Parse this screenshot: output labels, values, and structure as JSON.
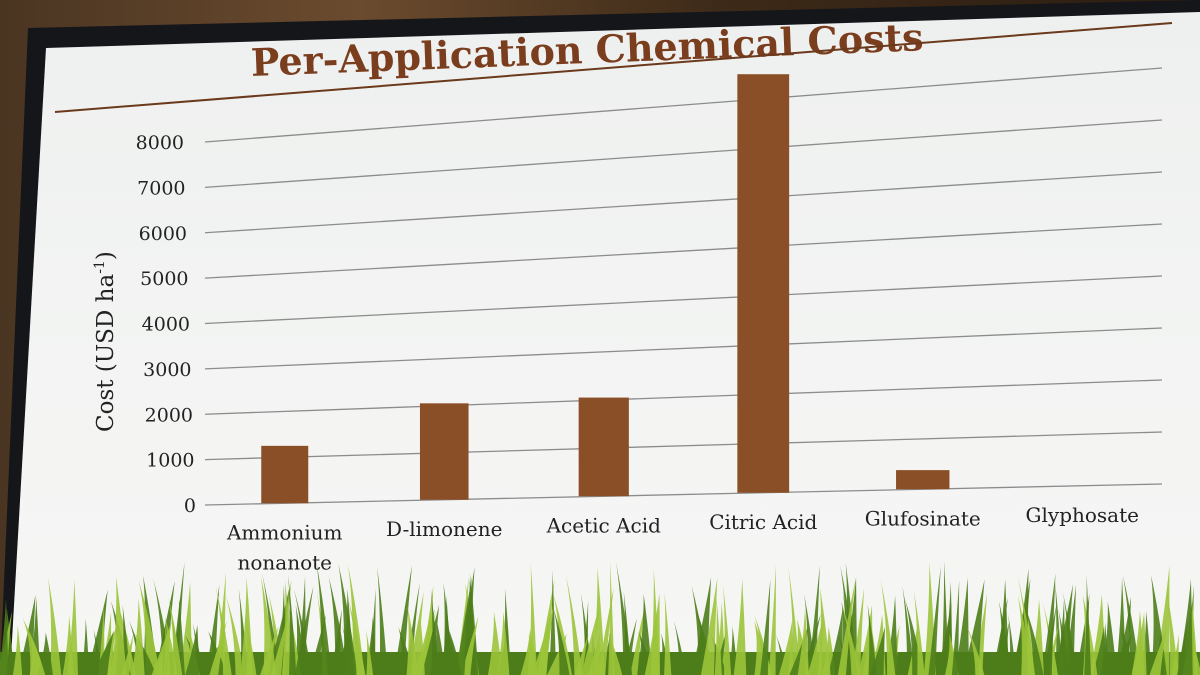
{
  "slide": {
    "title": "Per-Application Chemical Costs"
  },
  "colors": {
    "bar": "#8a4f26",
    "title": "#7a3d1d",
    "gridline": "#8c8c8c",
    "grass_dark": "#4d7d1a",
    "grass_light": "#9cc43a"
  },
  "chart_data": {
    "type": "bar",
    "title": "Per-Application Chemical Costs",
    "xlabel": "",
    "ylabel": "Cost (USD ha-1)",
    "ylabel_main": "Cost (USD ha",
    "ylabel_sup": "-1",
    "ylabel_close": ")",
    "categories": [
      "Ammonium nonanote",
      "D-limonene",
      "Acetic Acid",
      "Citric Acid",
      "Glufosinate",
      "Glyphosate"
    ],
    "category_lines": [
      [
        "Ammonium",
        "nonanote"
      ],
      [
        "D-limonene"
      ],
      [
        "Acetic Acid"
      ],
      [
        "Citric Acid"
      ],
      [
        "Glufosinate"
      ],
      [
        "Glyphosate"
      ]
    ],
    "values": [
      1250,
      2050,
      2050,
      8500,
      380,
      0
    ],
    "ylim": [
      0,
      8000
    ],
    "yticks": [
      0,
      1000,
      2000,
      3000,
      4000,
      5000,
      6000,
      7000,
      8000
    ],
    "grid": true,
    "legend": "none"
  }
}
